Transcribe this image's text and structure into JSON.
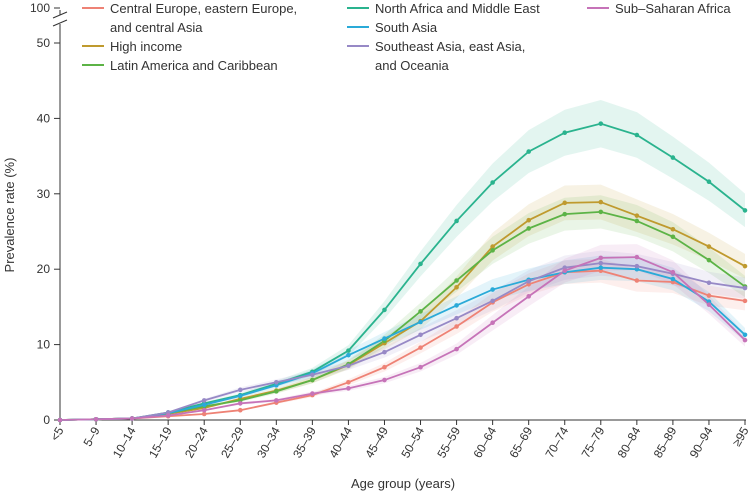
{
  "chart_data": {
    "type": "line",
    "xlabel": "Age group (years)",
    "ylabel": "Prevalence rate (%)",
    "ylim": [
      0,
      50
    ],
    "y_ticks": [
      "0",
      "10",
      "20",
      "30",
      "40",
      "50"
    ],
    "y_break_label": "100",
    "grid": false,
    "legend_position": "top",
    "categories": [
      "<5",
      "5–9",
      "10–14",
      "15–19",
      "20–24",
      "25–29",
      "30–34",
      "35–39",
      "40–44",
      "45–49",
      "50–54",
      "55–59",
      "60–64",
      "65–69",
      "70–74",
      "75–79",
      "80–84",
      "85–89",
      "90–94",
      "≥95"
    ],
    "series": [
      {
        "name": "Central Europe, eastern Europe, and central Asia",
        "legend_lines": [
          "Central Europe, eastern Europe,",
          "and central Asia"
        ],
        "color": "#ee8275",
        "values": [
          0,
          0.1,
          0.2,
          0.5,
          0.8,
          1.3,
          2.3,
          3.3,
          5.0,
          7.0,
          9.6,
          12.4,
          15.6,
          18.0,
          19.6,
          19.8,
          18.5,
          18.3,
          16.5,
          15.8
        ]
      },
      {
        "name": "High income",
        "legend_lines": [
          "High income"
        ],
        "color": "#bf9a2e",
        "values": [
          0,
          0.1,
          0.2,
          0.8,
          1.6,
          2.8,
          3.9,
          5.3,
          7.3,
          10.2,
          13.1,
          17.6,
          23.0,
          26.5,
          28.8,
          28.9,
          27.1,
          25.3,
          23.0,
          20.4
        ]
      },
      {
        "name": "Latin America and Caribbean",
        "legend_lines": [
          "Latin America and Caribbean"
        ],
        "color": "#5cb346",
        "values": [
          0,
          0.1,
          0.2,
          0.9,
          1.8,
          2.6,
          3.8,
          5.3,
          7.4,
          10.5,
          14.4,
          18.5,
          22.5,
          25.4,
          27.3,
          27.6,
          26.4,
          24.3,
          21.2,
          17.7
        ]
      },
      {
        "name": "North Africa and Middle East",
        "legend_lines": [
          "North Africa and Middle East"
        ],
        "color": "#2ab38e",
        "values": [
          0,
          0.1,
          0.2,
          1.0,
          2.2,
          3.3,
          4.8,
          6.4,
          9.2,
          14.6,
          20.7,
          26.4,
          31.5,
          35.6,
          38.1,
          39.3,
          37.8,
          34.8,
          31.6,
          27.8
        ]
      },
      {
        "name": "South Asia",
        "legend_lines": [
          "South Asia"
        ],
        "color": "#2aaad8",
        "values": [
          0,
          0.1,
          0.2,
          0.9,
          2.0,
          3.2,
          4.6,
          6.2,
          8.6,
          10.8,
          13.0,
          15.2,
          17.3,
          18.6,
          19.6,
          20.2,
          20.0,
          18.7,
          15.7,
          11.3
        ]
      },
      {
        "name": "Southeast Asia, east Asia, and Oceania",
        "legend_lines": [
          "Southeast Asia, east Asia,",
          "and Oceania"
        ],
        "color": "#9789c6",
        "values": [
          0,
          0.1,
          0.2,
          1.0,
          2.6,
          4.0,
          5.0,
          6.0,
          7.2,
          9.0,
          11.3,
          13.5,
          15.8,
          18.4,
          20.2,
          20.8,
          20.4,
          19.4,
          18.2,
          17.5
        ]
      },
      {
        "name": "Sub-Saharan Africa",
        "legend_lines": [
          "Sub–Saharan Africa"
        ],
        "color": "#c673b8",
        "values": [
          0,
          0.1,
          0.2,
          0.6,
          1.3,
          2.2,
          2.6,
          3.5,
          4.2,
          5.3,
          7.0,
          9.4,
          12.9,
          16.4,
          19.8,
          21.5,
          21.6,
          19.6,
          15.3,
          10.6
        ]
      }
    ]
  }
}
